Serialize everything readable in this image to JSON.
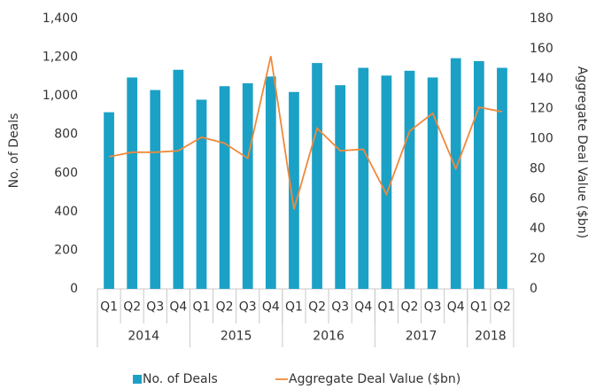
{
  "chart_data": {
    "type": "bar",
    "categories": [
      "Q1",
      "Q2",
      "Q3",
      "Q4",
      "Q1",
      "Q2",
      "Q3",
      "Q4",
      "Q1",
      "Q2",
      "Q3",
      "Q4",
      "Q1",
      "Q2",
      "Q3",
      "Q4",
      "Q1",
      "Q2"
    ],
    "category_groups": [
      {
        "label": "2014",
        "count": 4
      },
      {
        "label": "2015",
        "count": 4
      },
      {
        "label": "2016",
        "count": 4
      },
      {
        "label": "2017",
        "count": 4
      },
      {
        "label": "2018",
        "count": 2
      }
    ],
    "y_label": "No. of Deals",
    "y2_label": "Aggregate Deal Value ($bn)",
    "series": [
      {
        "name": "No. of Deals",
        "type": "bar",
        "color": "#1ba1c6",
        "values": [
          915,
          1095,
          1030,
          1135,
          980,
          1050,
          1065,
          1100,
          1020,
          1170,
          1055,
          1145,
          1105,
          1130,
          1095,
          1195,
          1180,
          1145
        ]
      },
      {
        "name": "Aggregate Deal Value ($bn)",
        "type": "line",
        "axis": "y2",
        "color": "#f0893b",
        "values": [
          88,
          91,
          91,
          92,
          101,
          97,
          87,
          155,
          53,
          107,
          92,
          93,
          63,
          105,
          117,
          80,
          121,
          118
        ]
      }
    ],
    "ylim": [
      0,
      1400
    ],
    "yticks": [
      0,
      {
        "value": 200,
        "label": "200"
      },
      {
        "value": 400,
        "label": "400"
      },
      {
        "value": 600,
        "label": "600"
      },
      {
        "value": 800,
        "label": "800"
      },
      {
        "value": 1000,
        "label": "1,000"
      },
      {
        "value": 1200,
        "label": "1,200"
      },
      {
        "value": 1400,
        "label": "1,400"
      }
    ],
    "y2lim": [
      0,
      180
    ],
    "y2ticks": [
      0,
      20,
      40,
      60,
      80,
      100,
      120,
      140,
      160,
      180
    ],
    "legend": "bottom"
  }
}
